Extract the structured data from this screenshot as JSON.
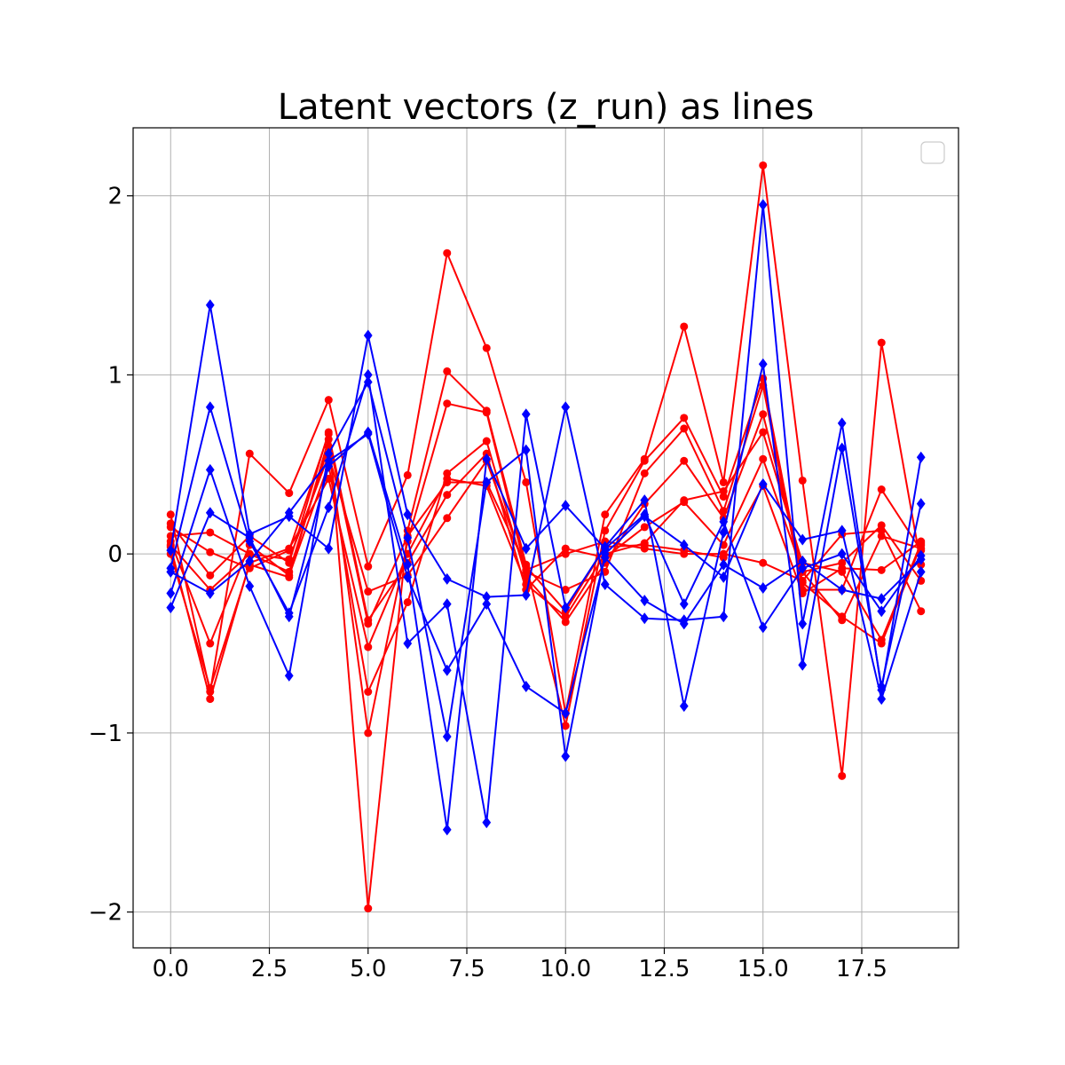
{
  "chart_data": {
    "type": "line",
    "title": "Latent vectors (z_run) as lines",
    "xlabel": "",
    "ylabel": "",
    "xlim": [
      -0.95,
      19.95
    ],
    "ylim": [
      -2.2,
      2.38
    ],
    "x_ticks": [
      0.0,
      2.5,
      5.0,
      7.5,
      10.0,
      12.5,
      15.0,
      17.5
    ],
    "x_tick_labels": [
      "0.0",
      "2.5",
      "5.0",
      "7.5",
      "10.0",
      "12.5",
      "15.0",
      "17.5"
    ],
    "y_ticks": [
      -2,
      -1,
      0,
      1,
      2
    ],
    "y_tick_labels": [
      "−2",
      "−1",
      "0",
      "1",
      "2"
    ],
    "grid": true,
    "legend": {
      "placement": "top-right",
      "entries": []
    },
    "x": [
      0,
      1,
      2,
      3,
      4,
      5,
      6,
      7,
      8,
      9,
      10,
      11,
      12,
      13,
      14,
      15,
      16,
      17,
      18,
      19
    ],
    "series": [
      {
        "color": "#ff0000",
        "marker": "circle",
        "values": [
          0.22,
          -0.77,
          0.56,
          0.34,
          0.86,
          -0.07,
          0.44,
          1.68,
          1.15,
          0.4,
          -0.89,
          0.22,
          0.53,
          1.27,
          0.4,
          2.17,
          0.41,
          -1.24,
          1.18,
          -0.06
        ]
      },
      {
        "color": "#ff0000",
        "marker": "circle",
        "values": [
          0.17,
          -0.12,
          0.1,
          -0.05,
          0.68,
          -1.98,
          0.13,
          1.02,
          0.8,
          -0.06,
          -0.96,
          0.13,
          0.52,
          0.76,
          0.32,
          0.98,
          -0.16,
          -0.35,
          -0.5,
          0.05
        ]
      },
      {
        "color": "#ff0000",
        "marker": "circle",
        "values": [
          0.1,
          0.12,
          0.0,
          -0.1,
          0.6,
          -1.0,
          0.07,
          0.84,
          0.79,
          -0.1,
          -0.2,
          -0.1,
          0.45,
          0.7,
          0.24,
          0.94,
          -0.2,
          -0.2,
          0.36,
          0.02
        ]
      },
      {
        "color": "#ff0000",
        "marker": "circle",
        "values": [
          0.07,
          -0.5,
          0.05,
          -0.12,
          0.5,
          -0.77,
          -0.27,
          0.45,
          0.63,
          -0.13,
          -0.38,
          -0.05,
          0.28,
          0.52,
          0.2,
          0.78,
          -0.1,
          -0.05,
          0.16,
          -0.15
        ]
      },
      {
        "color": "#ff0000",
        "marker": "circle",
        "values": [
          0.04,
          -0.81,
          -0.05,
          0.03,
          0.42,
          -0.52,
          0.0,
          0.42,
          0.38,
          -0.17,
          -0.35,
          0.0,
          0.06,
          0.3,
          0.35,
          0.68,
          -0.05,
          -0.1,
          -0.48,
          0.06
        ]
      },
      {
        "color": "#ff0000",
        "marker": "circle",
        "values": [
          0.15,
          0.01,
          -0.08,
          0.02,
          0.67,
          -0.37,
          -0.05,
          0.33,
          0.56,
          -0.2,
          0.03,
          -0.02,
          0.15,
          0.29,
          0.05,
          0.53,
          -0.1,
          -0.37,
          0.1,
          0.03
        ]
      },
      {
        "color": "#ff0000",
        "marker": "circle",
        "values": [
          0.05,
          -0.2,
          0.0,
          -0.03,
          0.55,
          -0.21,
          -0.12,
          0.2,
          0.52,
          -0.09,
          0.0,
          0.07,
          0.03,
          0.0,
          0.0,
          -0.05,
          -0.15,
          0.11,
          0.13,
          -0.32
        ]
      },
      {
        "color": "#ff0000",
        "marker": "circle",
        "values": [
          0.0,
          -0.75,
          -0.06,
          -0.13,
          0.64,
          -0.39,
          0.1,
          0.4,
          0.4,
          -0.07,
          -0.32,
          0.04,
          0.05,
          0.02,
          -0.02,
          0.38,
          -0.22,
          -0.08,
          -0.09,
          0.07
        ]
      },
      {
        "color": "#0000ff",
        "marker": "diamond",
        "values": [
          0.02,
          1.39,
          0.11,
          0.21,
          0.03,
          1.22,
          0.22,
          -0.14,
          -0.24,
          -0.23,
          0.82,
          -0.17,
          -0.36,
          -0.37,
          -0.35,
          1.95,
          -0.39,
          0.73,
          -0.76,
          0.54
        ]
      },
      {
        "color": "#0000ff",
        "marker": "diamond",
        "values": [
          -0.08,
          0.82,
          0.07,
          -0.33,
          0.26,
          1.0,
          -0.5,
          -0.28,
          -1.5,
          0.78,
          -0.3,
          0.04,
          0.3,
          -0.85,
          0.12,
          1.06,
          -0.62,
          0.59,
          -0.74,
          0.28
        ]
      },
      {
        "color": "#0000ff",
        "marker": "diamond",
        "values": [
          -0.22,
          0.47,
          -0.18,
          -0.68,
          0.56,
          0.96,
          0.09,
          -1.02,
          0.4,
          0.58,
          -1.13,
          0.0,
          0.21,
          0.05,
          -0.13,
          0.39,
          0.08,
          0.13,
          -0.81,
          -0.1
        ]
      },
      {
        "color": "#0000ff",
        "marker": "diamond",
        "values": [
          -0.3,
          0.23,
          0.09,
          -0.35,
          0.49,
          0.68,
          -0.06,
          -1.54,
          0.53,
          0.03,
          0.27,
          0.03,
          0.22,
          -0.28,
          0.18,
          -0.41,
          -0.08,
          0.0,
          -0.32,
          -0.01
        ]
      },
      {
        "color": "#0000ff",
        "marker": "diamond",
        "values": [
          -0.1,
          -0.22,
          -0.04,
          0.23,
          0.52,
          0.67,
          -0.13,
          -0.65,
          -0.28,
          -0.74,
          -0.89,
          -0.02,
          -0.26,
          -0.39,
          -0.06,
          -0.19,
          -0.04,
          -0.2,
          -0.25,
          -0.03
        ]
      }
    ]
  }
}
